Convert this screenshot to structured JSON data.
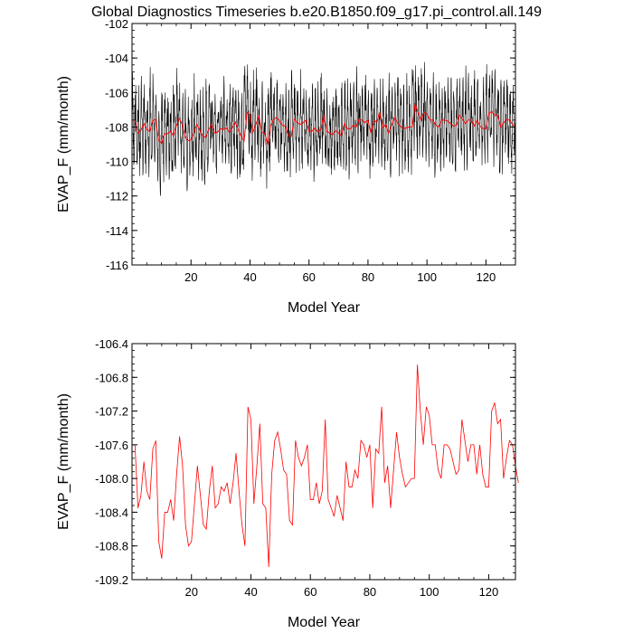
{
  "title": "Global Diagnostics Timeseries b.e20.B1850.f09_g17.pi_control.all.149",
  "colors": {
    "monthly": "#000000",
    "annual": "#ff0000",
    "axes": "#000000",
    "background": "#ffffff"
  },
  "chart_data": [
    {
      "type": "line",
      "title": "Global Diagnostics Timeseries b.e20.B1850.f09_g17.pi_control.all.149",
      "xlabel": "Model Year",
      "ylabel": "EVAP_F (mm/month)",
      "xlim": [
        0,
        130
      ],
      "ylim": [
        -116,
        -102
      ],
      "xticks": [
        20,
        40,
        60,
        80,
        100,
        120
      ],
      "yticks": [
        -116,
        -114,
        -112,
        -110,
        -108,
        -106,
        -104,
        -102
      ],
      "grid": false,
      "legend": "none",
      "series": [
        {
          "role": "monthly",
          "color": "#000000",
          "note": "monthly values, 12 per year; 1560 values in total",
          "period": 12,
          "start_year": 0,
          "seasonal_amplitude_mm_per_month": 1.8,
          "noise_amplitude_mm_per_month": 1.4,
          "seed": 149
        },
        {
          "role": "annual_mean",
          "color": "#ff0000",
          "x": [
            1,
            2,
            3,
            4,
            5,
            6,
            7,
            8,
            9,
            10,
            11,
            12,
            13,
            14,
            15,
            16,
            17,
            18,
            19,
            20,
            21,
            22,
            23,
            24,
            25,
            26,
            27,
            28,
            29,
            30,
            31,
            32,
            33,
            34,
            35,
            36,
            37,
            38,
            39,
            40,
            41,
            42,
            43,
            44,
            45,
            46,
            47,
            48,
            49,
            50,
            51,
            52,
            53,
            54,
            55,
            56,
            57,
            58,
            59,
            60,
            61,
            62,
            63,
            64,
            65,
            66,
            67,
            68,
            69,
            70,
            71,
            72,
            73,
            74,
            75,
            76,
            77,
            78,
            79,
            80,
            81,
            82,
            83,
            84,
            85,
            86,
            87,
            88,
            89,
            90,
            91,
            92,
            93,
            94,
            95,
            96,
            97,
            98,
            99,
            100,
            101,
            102,
            103,
            104,
            105,
            106,
            107,
            108,
            109,
            110,
            111,
            112,
            113,
            114,
            115,
            116,
            117,
            118,
            119,
            120,
            121,
            122,
            123,
            124,
            125,
            126,
            127,
            128,
            129,
            130
          ],
          "y": [
            -107.6,
            -108.35,
            -108.2,
            -107.8,
            -108.15,
            -108.25,
            -107.65,
            -107.55,
            -108.75,
            -108.95,
            -108.4,
            -108.4,
            -108.25,
            -108.5,
            -107.95,
            -107.5,
            -107.85,
            -108.55,
            -108.8,
            -108.75,
            -108.3,
            -107.85,
            -108.2,
            -108.55,
            -108.6,
            -108.15,
            -107.85,
            -108.35,
            -108.3,
            -108.1,
            -108.15,
            -108.05,
            -108.3,
            -108.05,
            -107.7,
            -108.15,
            -108.55,
            -108.8,
            -107.15,
            -107.3,
            -108.3,
            -107.85,
            -107.35,
            -108.3,
            -108.35,
            -109.05,
            -107.95,
            -107.55,
            -107.45,
            -107.65,
            -107.9,
            -107.95,
            -108.5,
            -108.55,
            -107.55,
            -107.75,
            -107.85,
            -107.75,
            -107.6,
            -108.25,
            -108.25,
            -108.05,
            -108.3,
            -108.15,
            -107.3,
            -108.25,
            -108.35,
            -108.45,
            -108.2,
            -108.35,
            -108.5,
            -107.8,
            -108.1,
            -108.1,
            -107.9,
            -108.0,
            -107.55,
            -107.6,
            -107.75,
            -107.6,
            -108.35,
            -107.65,
            -107.7,
            -107.15,
            -108.05,
            -107.85,
            -108.35,
            -107.9,
            -107.45,
            -107.75,
            -107.95,
            -108.1,
            -108.05,
            -108.0,
            -108.0,
            -106.65,
            -107.2,
            -107.6,
            -107.15,
            -107.25,
            -107.6,
            -107.6,
            -107.9,
            -108.0,
            -107.6,
            -107.6,
            -107.65,
            -107.8,
            -107.95,
            -107.9,
            -107.3,
            -107.55,
            -107.8,
            -107.6,
            -107.6,
            -107.95,
            -107.6,
            -107.95,
            -108.1,
            -108.1,
            -107.2,
            -107.1,
            -107.35,
            -107.3,
            -108.0,
            -107.75,
            -107.55,
            -107.6,
            -107.85,
            -108.05
          ],
          "note": "annual means shown in both panels"
        }
      ]
    },
    {
      "type": "line",
      "xlabel": "Model Year",
      "ylabel": "EVAP_F (mm/month)",
      "xlim": [
        0,
        129
      ],
      "ylim": [
        -109.2,
        -106.4
      ],
      "xticks": [
        20,
        40,
        60,
        80,
        100,
        120
      ],
      "yticks": [
        -109.2,
        -108.8,
        -108.4,
        -108.0,
        -107.6,
        -107.2,
        -106.8,
        -106.4
      ],
      "ytick_labels": [
        "-109.2",
        "-108.8",
        "-108.4",
        "-108.0",
        "-107.6",
        "-107.2",
        "-106.8",
        "-106.4"
      ],
      "grid": false,
      "legend": "none",
      "series": [
        {
          "role": "annual_mean",
          "color": "#ff0000",
          "x": [
            1,
            2,
            3,
            4,
            5,
            6,
            7,
            8,
            9,
            10,
            11,
            12,
            13,
            14,
            15,
            16,
            17,
            18,
            19,
            20,
            21,
            22,
            23,
            24,
            25,
            26,
            27,
            28,
            29,
            30,
            31,
            32,
            33,
            34,
            35,
            36,
            37,
            38,
            39,
            40,
            41,
            42,
            43,
            44,
            45,
            46,
            47,
            48,
            49,
            50,
            51,
            52,
            53,
            54,
            55,
            56,
            57,
            58,
            59,
            60,
            61,
            62,
            63,
            64,
            65,
            66,
            67,
            68,
            69,
            70,
            71,
            72,
            73,
            74,
            75,
            76,
            77,
            78,
            79,
            80,
            81,
            82,
            83,
            84,
            85,
            86,
            87,
            88,
            89,
            90,
            91,
            92,
            93,
            94,
            95,
            96,
            97,
            98,
            99,
            100,
            101,
            102,
            103,
            104,
            105,
            106,
            107,
            108,
            109,
            110,
            111,
            112,
            113,
            114,
            115,
            116,
            117,
            118,
            119,
            120,
            121,
            122,
            123,
            124,
            125,
            126,
            127,
            128,
            129,
            130
          ],
          "y": [
            -107.6,
            -108.35,
            -108.2,
            -107.8,
            -108.15,
            -108.25,
            -107.65,
            -107.55,
            -108.75,
            -108.95,
            -108.4,
            -108.4,
            -108.25,
            -108.5,
            -107.95,
            -107.5,
            -107.85,
            -108.55,
            -108.8,
            -108.75,
            -108.3,
            -107.85,
            -108.2,
            -108.55,
            -108.6,
            -108.15,
            -107.85,
            -108.35,
            -108.3,
            -108.1,
            -108.15,
            -108.05,
            -108.3,
            -108.05,
            -107.7,
            -108.15,
            -108.55,
            -108.8,
            -107.15,
            -107.3,
            -108.3,
            -107.85,
            -107.35,
            -108.3,
            -108.35,
            -109.05,
            -107.95,
            -107.55,
            -107.45,
            -107.65,
            -107.9,
            -107.95,
            -108.5,
            -108.55,
            -107.55,
            -107.75,
            -107.85,
            -107.75,
            -107.6,
            -108.25,
            -108.25,
            -108.05,
            -108.3,
            -108.15,
            -107.3,
            -108.25,
            -108.35,
            -108.45,
            -108.2,
            -108.35,
            -108.5,
            -107.8,
            -108.1,
            -108.1,
            -107.9,
            -108.0,
            -107.55,
            -107.6,
            -107.75,
            -107.6,
            -108.35,
            -107.65,
            -107.7,
            -107.15,
            -108.05,
            -107.85,
            -108.35,
            -107.9,
            -107.45,
            -107.75,
            -107.95,
            -108.1,
            -108.05,
            -108.0,
            -108.0,
            -106.65,
            -107.2,
            -107.6,
            -107.15,
            -107.25,
            -107.6,
            -107.6,
            -107.9,
            -108.0,
            -107.6,
            -107.6,
            -107.65,
            -107.8,
            -107.95,
            -107.9,
            -107.3,
            -107.55,
            -107.8,
            -107.6,
            -107.6,
            -107.95,
            -107.6,
            -107.95,
            -108.1,
            -108.1,
            -107.2,
            -107.1,
            -107.35,
            -107.3,
            -108.0,
            -107.75,
            -107.55,
            -107.6,
            -107.85,
            -108.05
          ]
        }
      ]
    }
  ]
}
